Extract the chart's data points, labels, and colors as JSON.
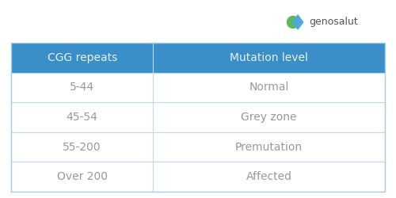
{
  "header": [
    "CGG repeats",
    "Mutation level"
  ],
  "rows": [
    [
      "5-44",
      "Normal"
    ],
    [
      "45-54",
      "Grey zone"
    ],
    [
      "55-200",
      "Premutation"
    ],
    [
      "Over 200",
      "Affected"
    ]
  ],
  "header_bg_color": "#3a8fc8",
  "header_text_color": "#e8f0f8",
  "cell_text_color": "#999999",
  "row_line_color": "#c0d8ee",
  "outer_border_color": "#a8c8e8",
  "background_color": "#ffffff",
  "outer_bg_color": "#ffffff",
  "header_fontsize": 10,
  "cell_fontsize": 10,
  "logo_text": "genosalut",
  "logo_text_color": "#555555",
  "logo_diamond_color": "#4fa8d8",
  "logo_circle_color": "#5cb85c",
  "col_split": 0.38
}
